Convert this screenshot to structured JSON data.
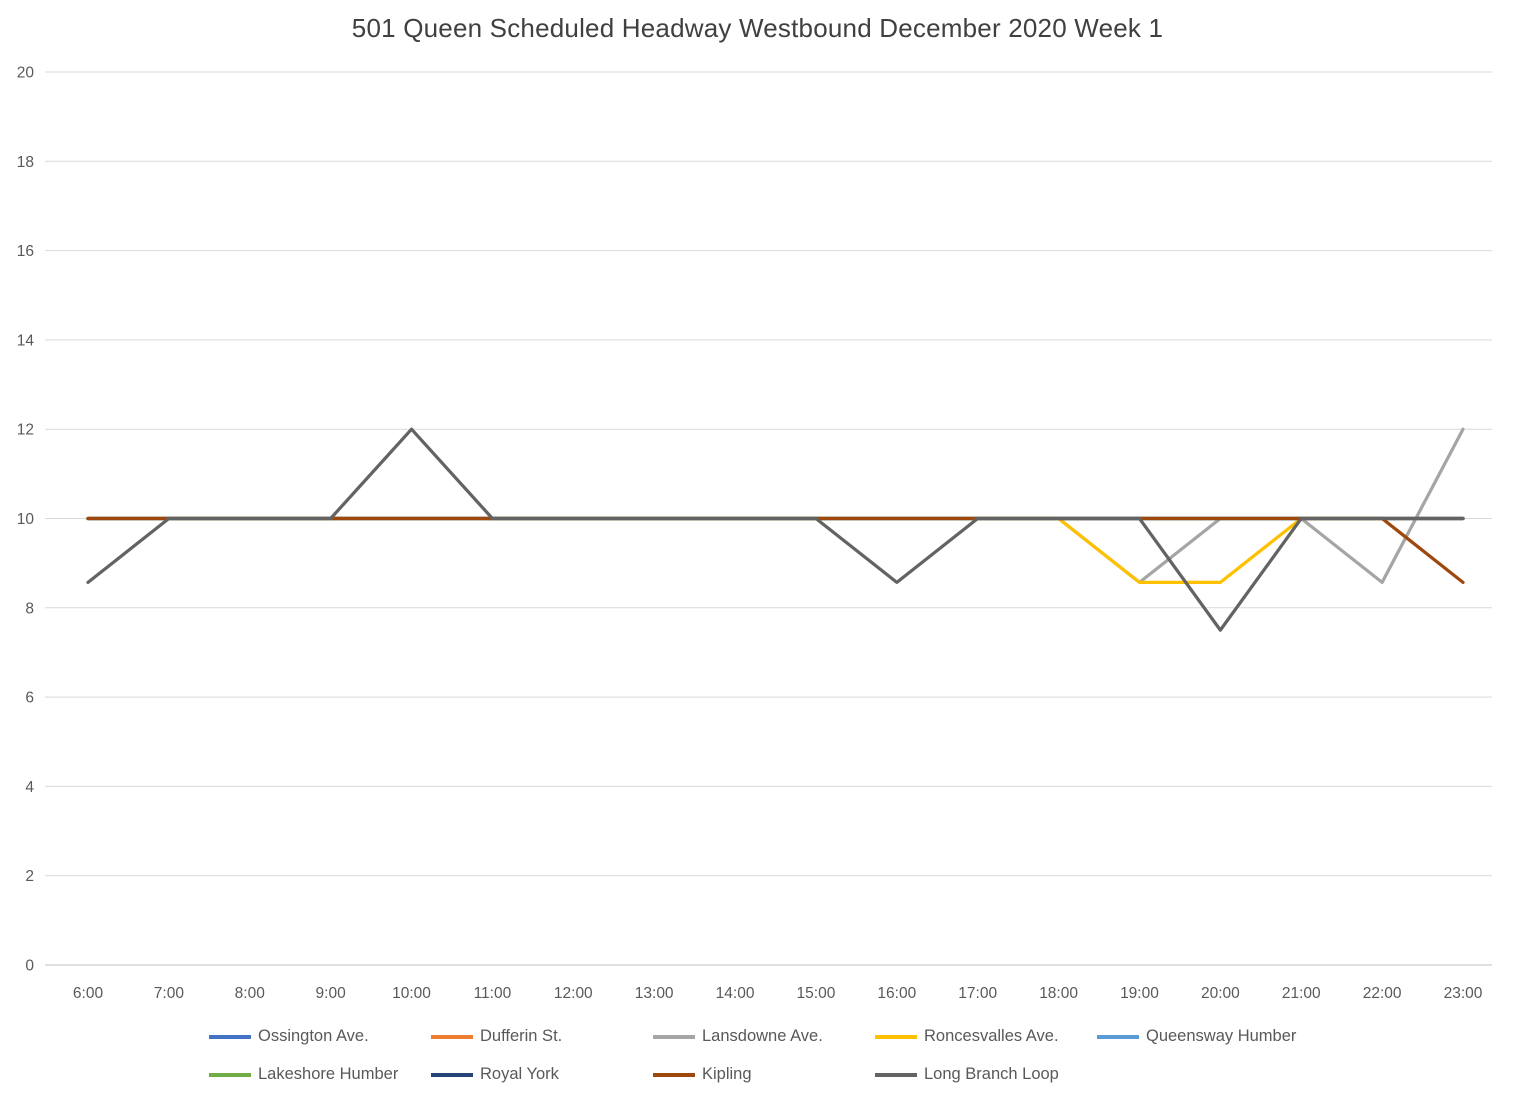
{
  "title": "501 Queen  Scheduled Headway Westbound December 2020 Week 1",
  "chart_data": {
    "type": "line",
    "title": "501 Queen  Scheduled Headway Westbound December 2020 Week 1",
    "xlabel": "",
    "ylabel": "",
    "categories": [
      "6:00",
      "7:00",
      "8:00",
      "9:00",
      "10:00",
      "11:00",
      "12:00",
      "13:00",
      "14:00",
      "15:00",
      "16:00",
      "17:00",
      "18:00",
      "19:00",
      "20:00",
      "21:00",
      "22:00",
      "23:00"
    ],
    "ylim": [
      0,
      20
    ],
    "ytick_step": 2,
    "grid": true,
    "legend_position": "bottom",
    "grid_color": "#D9D9D9",
    "axis_color": "#BFBFBF",
    "tick_color": "#595959",
    "series": [
      {
        "name": "Ossington Ave.",
        "color": "#4472C4",
        "values": [
          10,
          10,
          10,
          10,
          10,
          10,
          10,
          10,
          10,
          10,
          10,
          10,
          10,
          10,
          10,
          10,
          10,
          10
        ]
      },
      {
        "name": "Dufferin St.",
        "color": "#ED7D31",
        "values": [
          10,
          10,
          10,
          10,
          10,
          10,
          10,
          10,
          10,
          10,
          10,
          10,
          10,
          10,
          10,
          10,
          10,
          10
        ]
      },
      {
        "name": "Lansdowne Ave.",
        "color": "#A5A5A5",
        "values": [
          10,
          10,
          10,
          10,
          10,
          10,
          10,
          10,
          10,
          10,
          10,
          10,
          10,
          8.57,
          10,
          10,
          8.57,
          12
        ]
      },
      {
        "name": "Roncesvalles Ave.",
        "color": "#FFC000",
        "values": [
          10,
          10,
          10,
          10,
          10,
          10,
          10,
          10,
          10,
          10,
          10,
          10,
          10,
          8.57,
          8.57,
          10,
          10,
          10
        ]
      },
      {
        "name": "Queensway Humber",
        "color": "#5B9BD5",
        "values": [
          10,
          10,
          10,
          10,
          10,
          10,
          10,
          10,
          10,
          10,
          10,
          10,
          10,
          10,
          10,
          10,
          10,
          10
        ]
      },
      {
        "name": "Lakeshore Humber",
        "color": "#70AD47",
        "values": [
          10,
          10,
          10,
          10,
          10,
          10,
          10,
          10,
          10,
          10,
          10,
          10,
          10,
          10,
          10,
          10,
          10,
          10
        ]
      },
      {
        "name": "Royal York",
        "color": "#264478",
        "values": [
          10,
          10,
          10,
          10,
          10,
          10,
          10,
          10,
          10,
          10,
          10,
          10,
          10,
          10,
          10,
          10,
          10,
          10
        ]
      },
      {
        "name": "Kipling",
        "color": "#9E480E",
        "values": [
          10,
          10,
          10,
          10,
          10,
          10,
          10,
          10,
          10,
          10,
          10,
          10,
          10,
          10,
          10,
          10,
          10,
          8.57
        ]
      },
      {
        "name": "Long Branch Loop",
        "color": "#636363",
        "values": [
          8.57,
          10,
          10,
          10,
          12,
          10,
          10,
          10,
          10,
          10,
          8.57,
          10,
          10,
          10,
          7.5,
          10,
          10,
          10
        ]
      }
    ]
  }
}
